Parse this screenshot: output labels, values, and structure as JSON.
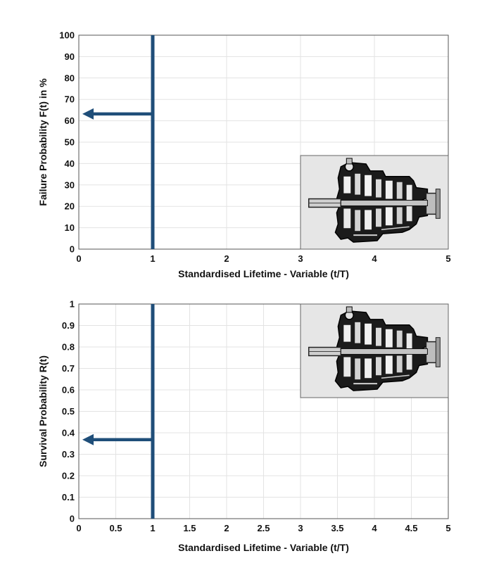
{
  "colors": {
    "marker": "#1f4e79",
    "grid": "#e3e3e3",
    "inset_bg": "#e6e6e6"
  },
  "chart_data": [
    {
      "type": "line",
      "title": "",
      "xlabel": "Standardised Lifetime - Variable (t/T)",
      "ylabel": "Failure Probability F(t) in %",
      "xlim": [
        0,
        5
      ],
      "ylim": [
        0,
        100
      ],
      "x_ticks": [
        0,
        1,
        2,
        3,
        4,
        5
      ],
      "x_tick_labels": [
        "0",
        "1",
        "2",
        "3",
        "4",
        "5"
      ],
      "y_ticks": [
        0,
        10,
        20,
        30,
        40,
        50,
        60,
        70,
        80,
        90,
        100
      ],
      "y_tick_labels": [
        "0",
        "10",
        "20",
        "30",
        "40",
        "50",
        "60",
        "70",
        "80",
        "90",
        "100"
      ],
      "grid": true,
      "marker_line": {
        "x": 1,
        "y_from": 0,
        "y_to": 100
      },
      "arrow": {
        "from_x": 1,
        "to_x": 0,
        "y": 63.2,
        "direction": "left"
      },
      "inset_image": {
        "icon": "gearbox-cutaway-icon",
        "placement": "bottom-right"
      }
    },
    {
      "type": "line",
      "title": "",
      "xlabel": "Standardised Lifetime - Variable (t/T)",
      "ylabel": "Survival Probability R(t)",
      "xlim": [
        0,
        5
      ],
      "ylim": [
        0,
        1
      ],
      "x_ticks": [
        0,
        0.5,
        1,
        1.5,
        2,
        2.5,
        3,
        3.5,
        4,
        4.5,
        5
      ],
      "x_tick_labels": [
        "0",
        "0.5",
        "1",
        "1.5",
        "2",
        "2.5",
        "3",
        "3.5",
        "4",
        "4.5",
        "5"
      ],
      "y_ticks": [
        0,
        0.1,
        0.2,
        0.3,
        0.4,
        0.5,
        0.6,
        0.7,
        0.8,
        0.9,
        1
      ],
      "y_tick_labels": [
        "0",
        "0.1",
        "0.2",
        "0.3",
        "0.4",
        "0.5",
        "0.6",
        "0.7",
        "0.8",
        "0.9",
        "1"
      ],
      "grid": true,
      "marker_line": {
        "x": 1,
        "y_from": 0,
        "y_to": 1
      },
      "arrow": {
        "from_x": 1,
        "to_x": 0,
        "y": 0.368,
        "direction": "left"
      },
      "inset_image": {
        "icon": "gearbox-cutaway-icon",
        "placement": "top-right"
      }
    }
  ]
}
